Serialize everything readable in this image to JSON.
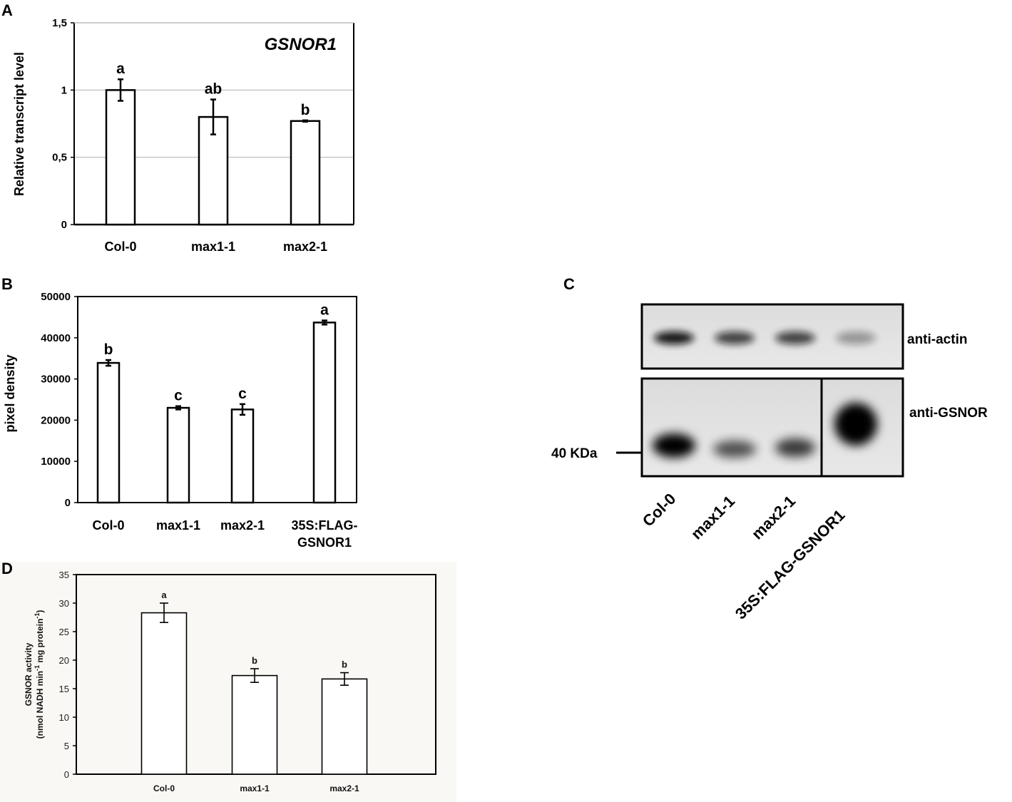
{
  "panel_labels": [
    "A",
    "B",
    "C",
    "D"
  ],
  "chart_data": [
    {
      "panel": "A",
      "type": "bar",
      "title": "GSNOR1",
      "ylabel": "Relative transcript level",
      "xlabel": "",
      "categories": [
        "Col-0",
        "max1-1",
        "max2-1"
      ],
      "values": [
        1.0,
        0.8,
        0.77
      ],
      "errors": [
        0.08,
        0.13,
        0.005
      ],
      "significance": [
        "a",
        "ab",
        "b"
      ],
      "ylim": [
        0,
        1.5
      ],
      "yticks": [
        0,
        0.5,
        1,
        1.5
      ],
      "ytick_labels": [
        "0",
        "0,5",
        "1",
        "1,5"
      ],
      "grid": true
    },
    {
      "panel": "B",
      "type": "bar",
      "ylabel": "pixel density",
      "xlabel": "",
      "categories": [
        "Col-0",
        "max1-1",
        "max2-1",
        "35S:FLAG-GSNOR1"
      ],
      "category_lines": [
        [
          "Col-0"
        ],
        [
          "max1-1"
        ],
        [
          "max2-1"
        ],
        [
          "35S:FLAG-",
          "GSNOR1"
        ]
      ],
      "values": [
        33900,
        23000,
        22600,
        43700
      ],
      "errors": [
        700,
        400,
        1300,
        500
      ],
      "significance": [
        "b",
        "c",
        "c",
        "a"
      ],
      "ylim": [
        0,
        50000
      ],
      "yticks": [
        0,
        10000,
        20000,
        30000,
        40000,
        50000
      ],
      "ytick_labels": [
        "0",
        "10000",
        "20000",
        "30000",
        "40000",
        "50000"
      ],
      "grid": false
    },
    {
      "panel": "D",
      "type": "bar",
      "ylabel": "GSNOR activity",
      "ylabel2": "(nmol NADH min-1 mg protein-1)",
      "xlabel": "",
      "categories": [
        "Col-0",
        "max1-1",
        "max2-1"
      ],
      "values": [
        28.3,
        17.3,
        16.7
      ],
      "errors": [
        1.7,
        1.2,
        1.1
      ],
      "significance": [
        "a",
        "b",
        "b"
      ],
      "ylim": [
        0,
        35
      ],
      "yticks": [
        0,
        5,
        10,
        15,
        20,
        25,
        30,
        35
      ],
      "ytick_labels": [
        "0",
        "5",
        "10",
        "15",
        "20",
        "25",
        "30",
        "35"
      ],
      "grid": false
    }
  ],
  "blot": {
    "panel": "C",
    "rows": [
      "anti-actin",
      "anti-GSNOR"
    ],
    "marker": "40 KDa",
    "lanes": [
      "Col-0",
      "max1-1",
      "max2-1",
      "35S:FLAG-GSNOR1"
    ],
    "actin_intensity": [
      0.95,
      0.75,
      0.75,
      0.35
    ],
    "gsnor_intensity": [
      1.0,
      0.65,
      0.75,
      1.0
    ]
  }
}
